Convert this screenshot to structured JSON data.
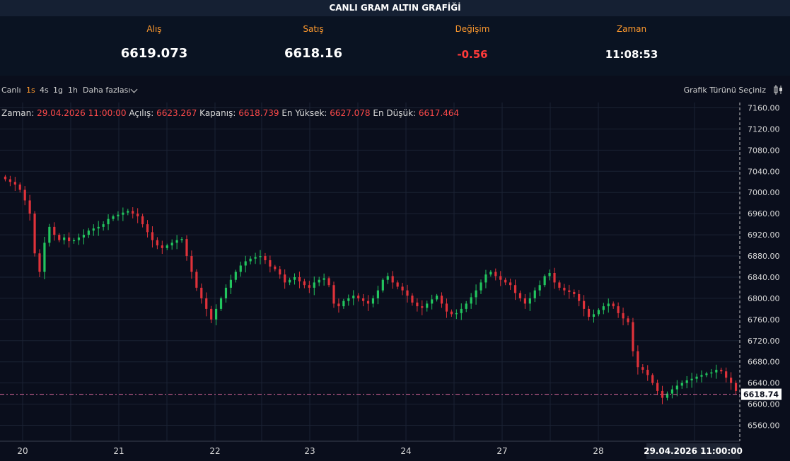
{
  "page_title": "CANLI GRAM ALTIN GRAFİĞİ",
  "stats": [
    {
      "label": "Alış",
      "value": "6619.073"
    },
    {
      "label": "Satış",
      "value": "6618.16"
    },
    {
      "label": "Değişim",
      "value": "-0.56"
    },
    {
      "label": "Zaman",
      "value": "11:08:53"
    }
  ],
  "toolbar": {
    "live": "Canlı",
    "intervals": [
      "1s",
      "4s",
      "1g",
      "1h"
    ],
    "active_interval": "1s",
    "more": "Daha fazlası",
    "chart_type": "Grafik Türünü Seçiniz"
  },
  "ohlc": {
    "time_label": "Zaman:",
    "time": "29.04.2026 11:00:00",
    "open_label": "Açılış:",
    "open": "6623.267",
    "close_label": "Kapanış:",
    "close": "6618.739",
    "high_label": "En Yüksek:",
    "high": "6627.078",
    "low_label": "En Düşük:",
    "low": "6617.464"
  },
  "colors": {
    "up": "#22c55e",
    "down": "#e0323a",
    "grid": "#1b2233",
    "accent": "#ff9a2e"
  },
  "chart_data": {
    "type": "candlestick",
    "ylim": [
      6530,
      7170
    ],
    "y_ticks": [
      "7160.00",
      "7120.00",
      "7080.00",
      "7040.00",
      "7000.00",
      "6960.00",
      "6920.00",
      "6880.00",
      "6840.00",
      "6800.00",
      "6760.00",
      "6720.00",
      "6680.00",
      "6640.00",
      "6600.00",
      "6560.00"
    ],
    "x_ticks": [
      "20",
      "21",
      "22",
      "23",
      "24",
      "27",
      "28"
    ],
    "current_price": "6618.74",
    "crosshair_date": "29.04.2026",
    "crosshair_time": "11:00:00",
    "closes": [
      7025,
      7020,
      7015,
      7005,
      6985,
      6960,
      6885,
      6850,
      6905,
      6935,
      6920,
      6910,
      6915,
      6908,
      6910,
      6915,
      6920,
      6928,
      6932,
      6935,
      6940,
      6950,
      6955,
      6958,
      6962,
      6965,
      6960,
      6955,
      6940,
      6925,
      6910,
      6900,
      6895,
      6900,
      6905,
      6910,
      6912,
      6880,
      6850,
      6820,
      6800,
      6780,
      6760,
      6780,
      6800,
      6820,
      6835,
      6850,
      6862,
      6870,
      6875,
      6878,
      6880,
      6872,
      6860,
      6855,
      6845,
      6830,
      6835,
      6840,
      6832,
      6825,
      6820,
      6830,
      6835,
      6838,
      6825,
      6790,
      6785,
      6795,
      6800,
      6805,
      6800,
      6795,
      6790,
      6800,
      6815,
      6835,
      6842,
      6830,
      6822,
      6815,
      6805,
      6792,
      6785,
      6782,
      6790,
      6798,
      6805,
      6790,
      6775,
      6770,
      6772,
      6780,
      6790,
      6802,
      6815,
      6830,
      6845,
      6850,
      6842,
      6835,
      6830,
      6825,
      6810,
      6800,
      6790,
      6800,
      6815,
      6825,
      6842,
      6848,
      6830,
      6820,
      6815,
      6812,
      6808,
      6795,
      6780,
      6765,
      6770,
      6778,
      6785,
      6790,
      6785,
      6772,
      6762,
      6755,
      6700,
      6670,
      6665,
      6655,
      6640,
      6625,
      6612,
      6620,
      6628,
      6635,
      6640,
      6645,
      6648,
      6652,
      6655,
      6658,
      6660,
      6665,
      6662,
      6650,
      6640,
      6625
    ]
  }
}
